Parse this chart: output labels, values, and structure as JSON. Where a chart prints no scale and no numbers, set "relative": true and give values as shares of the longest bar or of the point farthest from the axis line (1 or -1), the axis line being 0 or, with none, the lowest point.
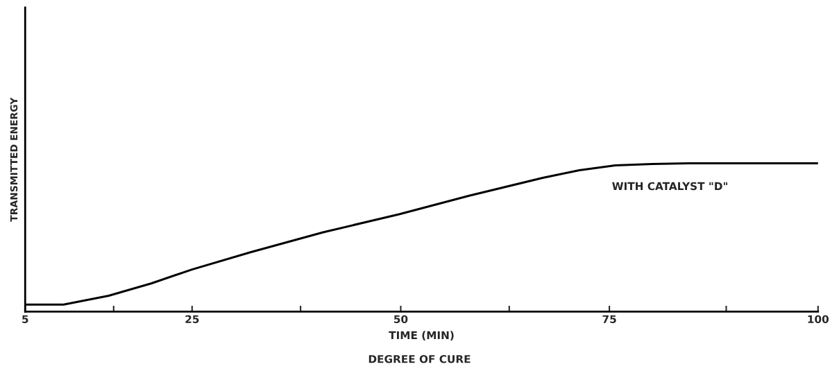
{
  "chart_data": {
    "type": "line",
    "xlabel": "TIME (MIN)",
    "ylabel": "TRANSMITTED ENERGY",
    "relative": true,
    "x": [
      5,
      9.6,
      15,
      20.1,
      25,
      32,
      40.7,
      49.8,
      58.2,
      67,
      71.4,
      75.7,
      80.1,
      84.5,
      100
    ],
    "series": [
      {
        "color": "#000000",
        "values": [
          0.047,
          0.047,
          0.107,
          0.19,
          0.284,
          0.4,
          0.535,
          0.656,
          0.781,
          0.902,
          0.953,
          0.986,
          0.995,
          1,
          1
        ]
      }
    ],
    "xlim": [
      5,
      100
    ],
    "xticks": [
      5,
      {
        "value": 15.6,
        "label": null
      },
      25,
      {
        "value": 38,
        "label": null
      },
      50,
      {
        "value": 63,
        "label": null
      },
      75,
      {
        "value": 89,
        "label": null
      },
      100
    ],
    "annotations": [
      "WITH CATALYST \"D\"",
      "DEGREE OF CURE"
    ],
    "grid": false,
    "marker": "none",
    "line_style": "solid"
  }
}
